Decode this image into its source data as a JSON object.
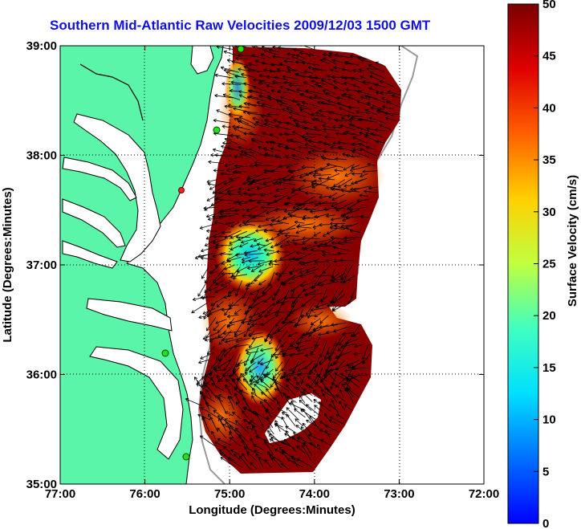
{
  "title": "Southern Mid-Atlantic Raw Velocities 2009/12/03 1500 GMT",
  "x_axis": {
    "label": "Longitude (Degrees:Minutes)",
    "ticks": [
      "77:00",
      "76:00",
      "75:00",
      "74:00",
      "73:00",
      "72:00"
    ]
  },
  "y_axis": {
    "label": "Latitude (Degrees:Minutes)",
    "ticks": [
      "39:00",
      "38:00",
      "37:00",
      "36:00",
      "35:00"
    ]
  },
  "colorbar": {
    "label": "Surface Velocity (cm/s)",
    "ticks": [
      "50",
      "45",
      "40",
      "35",
      "30",
      "25",
      "20",
      "15",
      "10",
      "5",
      "0"
    ],
    "range": [
      0,
      50
    ],
    "colormap": "jet"
  },
  "map": {
    "type": "surface current velocity map",
    "lon_range": [
      -77,
      -72
    ],
    "lat_range": [
      35,
      39
    ],
    "land_color": "#5af5a8",
    "water_color": "#ffffff",
    "grid": "dotted",
    "features": {
      "low_velocity_regions": [
        "near 37:00N 74:45W",
        "near 36:00N 74:45W"
      ],
      "max_velocity_cm_s": 50
    }
  },
  "chart_data": {
    "type": "heatmap",
    "title": "Southern Mid-Atlantic Raw Velocities 2009/12/03 1500 GMT",
    "xlabel": "Longitude (Degrees:Minutes)",
    "ylabel": "Latitude (Degrees:Minutes)",
    "xlim": [
      -77,
      -72
    ],
    "ylim": [
      35,
      39
    ],
    "colorbar_label": "Surface Velocity (cm/s)",
    "colorbar_range": [
      0,
      50
    ]
  }
}
